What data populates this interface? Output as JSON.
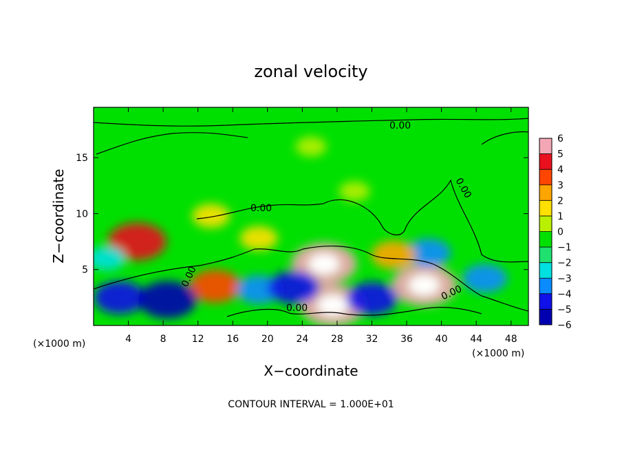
{
  "chart_data": {
    "type": "heatmap",
    "title": "zonal velocity",
    "xlabel": "X−coordinate",
    "ylabel": "Z−coordinate",
    "x_unit_left": "(×1000 m)",
    "x_unit_right": "(×1000 m)",
    "xlim": [
      0,
      50
    ],
    "ylim": [
      0,
      19.5
    ],
    "x_ticks": [
      4,
      8,
      12,
      16,
      20,
      24,
      28,
      32,
      36,
      40,
      44,
      48
    ],
    "y_ticks": [
      5,
      10,
      15
    ],
    "colorbar": {
      "levels": [
        6,
        5,
        4,
        3,
        2,
        1,
        0,
        -1,
        -2,
        -3,
        -4,
        -5,
        -6
      ],
      "labels": [
        "6",
        "5",
        "4",
        "3",
        "2",
        "1",
        "0",
        "−1",
        "−2",
        "−3",
        "−4",
        "−5",
        "−6"
      ],
      "colors": [
        "#f3a6b4",
        "#e8111d",
        "#ff4500",
        "#ffa500",
        "#ffe000",
        "#b8f000",
        "#00e000",
        "#20e070",
        "#00e0e0",
        "#0a8cff",
        "#1010e8",
        "#0000b0",
        "#5a00a0"
      ]
    },
    "contour_labels": [
      "0.00",
      "0.00",
      "0.00",
      "0.00",
      "0.00",
      "0.00",
      "0.00"
    ],
    "note": "CONTOUR INTERVAL = 1.000E+01",
    "features": [
      {
        "x": 5,
        "z": 7.5,
        "value": 5
      },
      {
        "x": 14,
        "z": 3.5,
        "value": 4
      },
      {
        "x": 26.5,
        "z": 5.5,
        "value": 6
      },
      {
        "x": 27.5,
        "z": 1.8,
        "value": 6
      },
      {
        "x": 38,
        "z": 3.6,
        "value": 6
      },
      {
        "x": 3,
        "z": 2.5,
        "value": -4
      },
      {
        "x": 8.5,
        "z": 2.3,
        "value": -5
      },
      {
        "x": 19,
        "z": 3.2,
        "value": -3
      },
      {
        "x": 23,
        "z": 3.4,
        "value": -4
      },
      {
        "x": 32,
        "z": 2.4,
        "value": -4
      },
      {
        "x": 45,
        "z": 4.2,
        "value": -3
      },
      {
        "x": 38.5,
        "z": 6.5,
        "value": -3
      },
      {
        "x": 19,
        "z": 7.8,
        "value": 2
      },
      {
        "x": 13.5,
        "z": 9.8,
        "value": 2
      },
      {
        "x": 34.5,
        "z": 6.3,
        "value": 3
      },
      {
        "x": 1.5,
        "z": 6,
        "value": -2
      },
      {
        "x": 30,
        "z": 12,
        "value": 1
      },
      {
        "x": 25,
        "z": 16,
        "value": 1
      }
    ]
  }
}
